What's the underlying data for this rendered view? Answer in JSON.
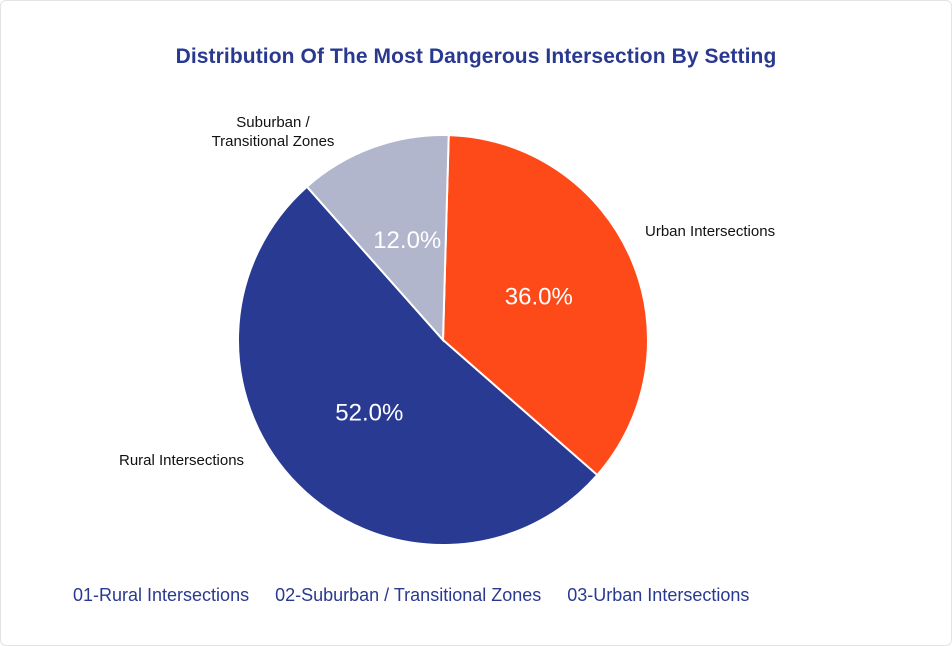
{
  "chart_data": {
    "type": "pie",
    "title": "Distribution Of The Most Dangerous Intersection By Setting",
    "slices": [
      {
        "label": "Urban Intersections",
        "value": 36.0,
        "value_label": "36.0%",
        "color": "#fd4a18"
      },
      {
        "label": "Rural Intersections",
        "value": 52.0,
        "value_label": "52.0%",
        "color": "#283a92"
      },
      {
        "label": "Suburban / Transitional Zones",
        "value": 12.0,
        "value_label": "12.0%",
        "color": "#b1b6cc"
      }
    ],
    "slice_labels": {
      "urban": "Urban Intersections",
      "rural": "Rural Intersections",
      "suburban_line1": "Suburban /",
      "suburban_line2": "Transitional Zones"
    },
    "legend": [
      "01-Rural Intersections",
      "02-Suburban / Transitional Zones",
      "03-Urban Intersections"
    ],
    "legend_placement": "bottom",
    "value_label_color": "#ffffff",
    "title_color": "#2a3990"
  }
}
